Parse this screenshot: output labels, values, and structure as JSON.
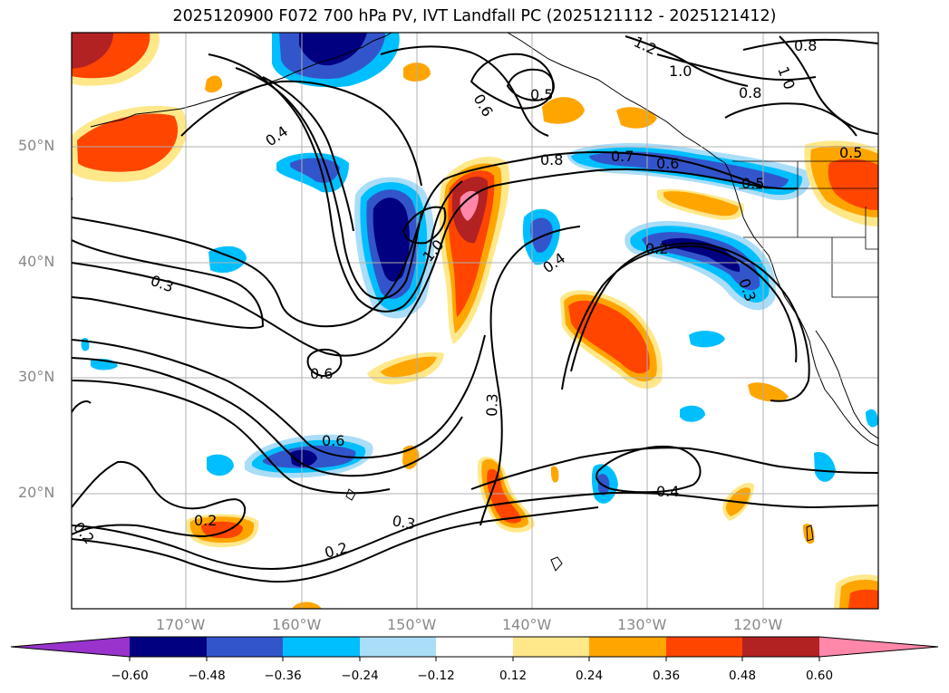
{
  "title": "2025120900 F072 700 hPa PV, IVT Landfall PC (2025121112 - 2025121412)",
  "latitude_labels": [
    "50°N",
    "40°N",
    "30°N",
    "20°N"
  ],
  "longitude_labels": [
    "170°W",
    "160°W",
    "150°W",
    "140°W",
    "130°W",
    "120°W"
  ],
  "contour_labels": [
    "1.2",
    "0.8",
    "1.0",
    "1.0",
    "0.8",
    "0.5",
    "0.6",
    "0.4",
    "0.5",
    "0.2",
    "0.8",
    "0.7",
    "0.6",
    "0.5",
    "1.0",
    "0.3",
    "0.4",
    "0.2",
    "0.3",
    "0.6",
    "0.3",
    "0.6",
    "0.4",
    "0.2",
    "0.3",
    "0.2",
    "0.2"
  ],
  "colorbar": {
    "ticks": [
      "−0.60",
      "−0.48",
      "−0.36",
      "−0.24",
      "−0.12",
      "0.12",
      "0.24",
      "0.36",
      "0.48",
      "0.60"
    ],
    "colors": [
      "#9933cc",
      "#000080",
      "#3355cc",
      "#00bfff",
      "#aaddf7",
      "#ffffff",
      "#ffe88a",
      "#ffa500",
      "#ff4500",
      "#b22222",
      "#ff88aa"
    ]
  },
  "colors": {
    "neg_dark": "#000080",
    "neg_mid": "#3355cc",
    "neg_light": "#00bfff",
    "neg_pale": "#aaddf7",
    "pos_pale": "#ffe88a",
    "pos_light": "#ffa500",
    "pos_mid": "#ff4500",
    "pos_dark": "#b22222",
    "pos_max": "#ff88aa"
  }
}
